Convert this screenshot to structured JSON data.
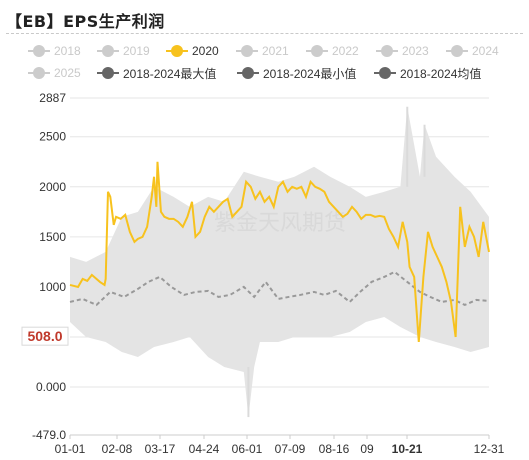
{
  "title": "【EB】EPS生产利润",
  "legend": [
    {
      "label": "2018",
      "color": "#cccccc",
      "active": false
    },
    {
      "label": "2019",
      "color": "#cccccc",
      "active": false
    },
    {
      "label": "2020",
      "color": "#f7c21e",
      "active": true
    },
    {
      "label": "2021",
      "color": "#cccccc",
      "active": false
    },
    {
      "label": "2022",
      "color": "#cccccc",
      "active": false
    },
    {
      "label": "2023",
      "color": "#cccccc",
      "active": false
    },
    {
      "label": "2024",
      "color": "#cccccc",
      "active": false
    },
    {
      "label": "2025",
      "color": "#cccccc",
      "active": false
    },
    {
      "label": "2018-2024最大值",
      "color": "#666666",
      "active": true
    },
    {
      "label": "2018-2024最小值",
      "color": "#666666",
      "active": true
    },
    {
      "label": "2018-2024均值",
      "color": "#666666",
      "active": true
    }
  ],
  "watermark": "紫金天风期货",
  "chart_data": {
    "type": "line",
    "title": "【EB】EPS生产利润",
    "xlabel": "",
    "ylabel": "",
    "ylim": [
      -479.0,
      2887
    ],
    "yticks": [
      -479.0,
      0.0,
      500,
      1000,
      1500,
      2000,
      2500,
      2887
    ],
    "ytick_labels": [
      "-479.0",
      "0.000",
      "500",
      "1000",
      "1500",
      "2000",
      "2500",
      "2887"
    ],
    "xticks": [
      "01-01",
      "02-08",
      "03-17",
      "04-24",
      "06-01",
      "07-09",
      "08-16",
      "09",
      "10-21",
      "12-31"
    ],
    "highlight_y": {
      "value": 508.0,
      "label": "508.0",
      "color": "#c0392b"
    },
    "highlight_x": {
      "label": "10-21",
      "color": "#c0392b"
    },
    "grid": true,
    "legend_position": "top",
    "series": [
      {
        "name": "2020",
        "type": "line",
        "color": "#f7c21e",
        "x": [
          "01-01",
          "01-08",
          "01-12",
          "01-16",
          "01-20",
          "01-27",
          "01-31",
          "02-01",
          "02-03",
          "02-05",
          "02-08",
          "02-10",
          "02-14",
          "02-18",
          "02-22",
          "02-26",
          "03-01",
          "03-05",
          "03-09",
          "03-13",
          "03-15",
          "03-17",
          "03-18",
          "03-21",
          "03-24",
          "03-28",
          "04-01",
          "04-05",
          "04-09",
          "04-13",
          "04-17",
          "04-20",
          "04-24",
          "04-28",
          "05-02",
          "05-06",
          "05-10",
          "05-14",
          "05-18",
          "05-22",
          "05-26",
          "05-30",
          "06-03",
          "06-07",
          "06-11",
          "06-15",
          "06-19",
          "06-23",
          "06-27",
          "07-01",
          "07-05",
          "07-09",
          "07-13",
          "07-17",
          "07-21",
          "07-25",
          "07-29",
          "08-02",
          "08-06",
          "08-10",
          "08-14",
          "08-18",
          "08-22",
          "08-26",
          "08-30",
          "09-03",
          "09-07",
          "09-11",
          "09-15",
          "09-19",
          "09-23",
          "09-27",
          "10-01",
          "10-05",
          "10-09",
          "10-13",
          "10-17",
          "10-21",
          "10-23",
          "10-27",
          "10-31",
          "11-04",
          "11-08",
          "11-12",
          "11-16",
          "11-20",
          "11-24",
          "11-28",
          "12-02",
          "12-06",
          "12-10",
          "12-14",
          "12-18",
          "12-22",
          "12-26",
          "12-31"
        ],
        "values": [
          1020,
          1000,
          1080,
          1060,
          1120,
          1050,
          1020,
          1080,
          1950,
          1900,
          1620,
          1700,
          1680,
          1720,
          1550,
          1450,
          1480,
          1500,
          1600,
          1900,
          2100,
          1800,
          2250,
          1750,
          1700,
          1680,
          1680,
          1650,
          1600,
          1700,
          1850,
          1500,
          1550,
          1700,
          1800,
          1750,
          1800,
          1850,
          1880,
          1700,
          1750,
          1800,
          2050,
          2000,
          1880,
          1950,
          1850,
          1900,
          1800,
          2000,
          2050,
          1950,
          2000,
          1980,
          2000,
          1900,
          2050,
          2000,
          1980,
          1950,
          1850,
          1800,
          1750,
          1700,
          1730,
          1800,
          1750,
          1680,
          1720,
          1720,
          1700,
          1710,
          1700,
          1580,
          1500,
          1400,
          1650,
          1450,
          1200,
          1100,
          450,
          1100,
          1550,
          1400,
          1300,
          1200,
          1050,
          850,
          500,
          1800,
          1400,
          1600,
          1500,
          1300,
          1650,
          1350
        ]
      },
      {
        "name": "2018-2024最大值",
        "type": "area-upper",
        "color": "#e4e4e4",
        "x": [
          "01-01",
          "01-15",
          "02-01",
          "02-15",
          "03-01",
          "03-15",
          "04-01",
          "04-15",
          "05-01",
          "05-15",
          "06-01",
          "06-15",
          "07-01",
          "07-15",
          "08-01",
          "08-15",
          "09-01",
          "09-15",
          "10-01",
          "10-15",
          "10-21",
          "11-01",
          "11-05",
          "11-15",
          "12-01",
          "12-15",
          "12-31"
        ],
        "values": [
          1300,
          1250,
          1350,
          1700,
          1750,
          2000,
          1900,
          1800,
          1900,
          1850,
          2150,
          2100,
          2050,
          2100,
          2200,
          2100,
          2000,
          1900,
          1950,
          2000,
          2800,
          2100,
          2620,
          2300,
          2100,
          1950,
          1700
        ]
      },
      {
        "name": "2018-2024最小值",
        "type": "area-lower",
        "color": "#e4e4e4",
        "x": [
          "01-01",
          "01-15",
          "02-01",
          "02-15",
          "03-01",
          "03-15",
          "04-01",
          "04-15",
          "05-01",
          "05-15",
          "06-01",
          "06-05",
          "06-10",
          "06-15",
          "07-01",
          "07-15",
          "08-01",
          "08-15",
          "09-01",
          "09-15",
          "10-01",
          "10-15",
          "11-01",
          "11-15",
          "12-01",
          "12-15",
          "12-31"
        ],
        "values": [
          650,
          500,
          450,
          350,
          300,
          400,
          450,
          500,
          300,
          200,
          150,
          -300,
          200,
          450,
          450,
          500,
          500,
          500,
          550,
          650,
          700,
          600,
          500,
          450,
          400,
          350,
          400
        ]
      },
      {
        "name": "2018-2024均值",
        "type": "dashed",
        "color": "#999999",
        "x": [
          "01-01",
          "01-12",
          "01-24",
          "02-05",
          "02-17",
          "03-01",
          "03-10",
          "03-20",
          "03-30",
          "04-10",
          "04-20",
          "05-01",
          "05-10",
          "05-20",
          "06-01",
          "06-10",
          "06-20",
          "07-01",
          "07-10",
          "07-20",
          "08-01",
          "08-10",
          "08-20",
          "09-01",
          "09-10",
          "09-20",
          "10-01",
          "10-10",
          "10-21",
          "11-01",
          "11-10",
          "11-20",
          "12-01",
          "12-10",
          "12-20",
          "12-31"
        ],
        "values": [
          850,
          880,
          820,
          950,
          900,
          980,
          1050,
          1100,
          1000,
          920,
          950,
          960,
          900,
          920,
          1000,
          900,
          1050,
          880,
          900,
          920,
          950,
          920,
          960,
          850,
          950,
          1050,
          1100,
          1150,
          1050,
          950,
          900,
          850,
          870,
          820,
          870,
          860
        ]
      }
    ]
  }
}
